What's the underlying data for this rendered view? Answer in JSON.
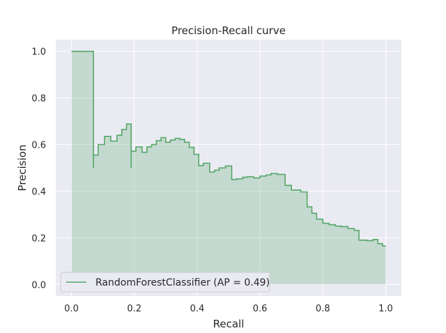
{
  "chart_data": {
    "type": "area",
    "title": "Precision-Recall curve",
    "xlabel": "Recall",
    "ylabel": "Precision",
    "xlim": [
      -0.05,
      1.05
    ],
    "ylim": [
      -0.05,
      1.05
    ],
    "x_ticks": [
      0.0,
      0.2,
      0.4,
      0.6,
      0.8,
      1.0
    ],
    "x_tick_labels": [
      "0.0",
      "0.2",
      "0.4",
      "0.6",
      "0.8",
      "1.0"
    ],
    "y_ticks": [
      0.0,
      0.2,
      0.4,
      0.6,
      0.8,
      1.0
    ],
    "y_tick_labels": [
      "0.0",
      "0.2",
      "0.4",
      "0.6",
      "0.8",
      "1.0"
    ],
    "grid": true,
    "legend_position": "lower-left",
    "colors": {
      "line": "#55a868",
      "fill": "#55a868",
      "plot_bg": "#eaeaf2",
      "grid": "#ffffff"
    },
    "series": [
      {
        "name": "RandomForestClassifier (AP = 0.49)",
        "step": "post",
        "x": [
          0.0,
          0.07,
          0.07,
          0.085,
          0.105,
          0.125,
          0.145,
          0.16,
          0.175,
          0.19,
          0.19,
          0.205,
          0.225,
          0.24,
          0.255,
          0.27,
          0.285,
          0.3,
          0.315,
          0.33,
          0.345,
          0.36,
          0.375,
          0.39,
          0.405,
          0.42,
          0.44,
          0.455,
          0.47,
          0.49,
          0.51,
          0.525,
          0.545,
          0.56,
          0.58,
          0.6,
          0.62,
          0.635,
          0.655,
          0.68,
          0.7,
          0.73,
          0.75,
          0.765,
          0.78,
          0.8,
          0.82,
          0.84,
          0.86,
          0.88,
          0.9,
          0.915,
          0.94,
          0.96,
          0.975,
          0.99,
          1.0
        ],
        "y": [
          1.0,
          0.5,
          0.555,
          0.6,
          0.635,
          0.615,
          0.64,
          0.665,
          0.688,
          0.5,
          0.572,
          0.59,
          0.567,
          0.59,
          0.6,
          0.617,
          0.63,
          0.61,
          0.62,
          0.627,
          0.622,
          0.61,
          0.588,
          0.558,
          0.51,
          0.52,
          0.482,
          0.49,
          0.5,
          0.508,
          0.45,
          0.453,
          0.46,
          0.462,
          0.457,
          0.465,
          0.47,
          0.476,
          0.472,
          0.425,
          0.405,
          0.397,
          0.333,
          0.305,
          0.28,
          0.262,
          0.256,
          0.25,
          0.248,
          0.24,
          0.232,
          0.19,
          0.188,
          0.193,
          0.175,
          0.165,
          0.165
        ]
      }
    ]
  }
}
